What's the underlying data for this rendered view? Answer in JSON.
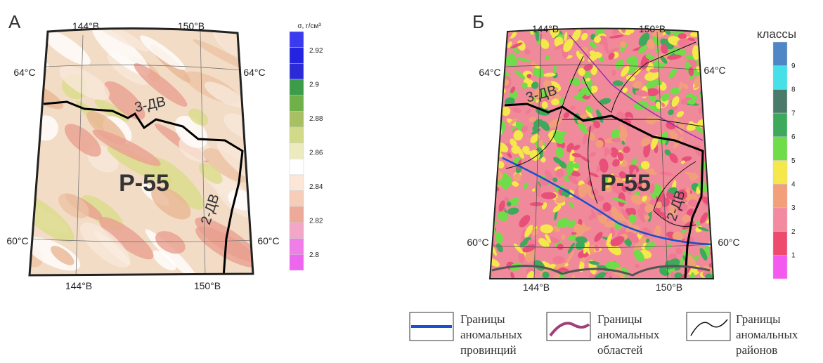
{
  "panels": [
    {
      "letter": "А",
      "lon_top": [
        "144°В",
        "150°В"
      ],
      "lon_bottom": [
        "144°В",
        "150°В"
      ],
      "lat_left": [
        "64°С",
        "60°С"
      ],
      "lat_right": [
        "64°С",
        "60°С"
      ],
      "zones": [
        "3-ДВ",
        "Р-55",
        "2-ДВ"
      ],
      "scale": {
        "title": "σ, г/см³",
        "labels": [
          "2.92",
          "2.9",
          "2.88",
          "2.86",
          "2.84",
          "2.82",
          "2.8"
        ]
      }
    },
    {
      "letter": "Б",
      "lon_top": [
        "144°В",
        "150°В"
      ],
      "lon_bottom": [
        "144°В",
        "150°В"
      ],
      "lat_left": [
        "64°С",
        "60°С"
      ],
      "lat_right": [
        "64°С",
        "60°С"
      ],
      "zones": [
        "3-ДВ",
        "Р-55",
        "2-ДВ"
      ],
      "scale": {
        "title": "классы",
        "labels": [
          "9",
          "8",
          "7",
          "6",
          "5",
          "4",
          "3",
          "2",
          "1"
        ]
      }
    }
  ],
  "legend": [
    {
      "lines": [
        "Границы",
        "аномальных",
        "провинций"
      ]
    },
    {
      "lines": [
        "Границы",
        "аномальных",
        "областей"
      ]
    },
    {
      "lines": [
        "Границы",
        "аномальных",
        "районов"
      ]
    }
  ]
}
